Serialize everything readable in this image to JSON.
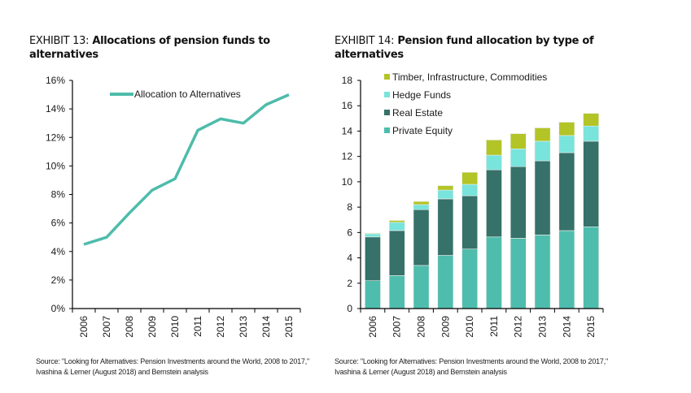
{
  "exhibits": [
    {
      "label": "EXHIBIT 13:",
      "title": "Allocations of pension funds to alternatives",
      "source": "Source: \"Looking for Alternatives: Pension Investments around the World, 2008 to 2017,\" Ivashina & Lerner (August 2018) and Bernstein analysis"
    },
    {
      "label": "EXHIBIT 14:",
      "title": "Pension fund allocation by type of alternatives",
      "source": "Source: \"Looking for Alternatives: Pension Investments around the World, 2008 to 2017,\" Ivashina & Lerner (August 2018) and Bernstein analysis"
    }
  ],
  "chart_data": [
    {
      "type": "line",
      "title": "Allocations of pension funds to alternatives",
      "xlabel": "",
      "ylabel": "",
      "categories": [
        "2006",
        "2007",
        "2008",
        "2009",
        "2010",
        "2011",
        "2012",
        "2013",
        "2014",
        "2015"
      ],
      "series": [
        {
          "name": "Allocation to Alternatives",
          "color": "#4dbcaa",
          "values": [
            4.5,
            5.0,
            6.7,
            8.3,
            9.1,
            12.5,
            13.3,
            13.0,
            14.3,
            15.0
          ]
        }
      ],
      "ylim": [
        0,
        16
      ],
      "yticks": [
        0,
        2,
        4,
        6,
        8,
        10,
        12,
        14,
        16
      ],
      "ytick_labels": [
        "0%",
        "2%",
        "4%",
        "6%",
        "8%",
        "10%",
        "12%",
        "14%",
        "16%"
      ],
      "grid": false,
      "legend": "top"
    },
    {
      "type": "bar",
      "stacked": true,
      "title": "Pension fund allocation by type of alternatives",
      "xlabel": "",
      "ylabel": "",
      "categories": [
        "2006",
        "2007",
        "2008",
        "2009",
        "2010",
        "2011",
        "2012",
        "2013",
        "2014",
        "2015"
      ],
      "series": [
        {
          "name": "Private Equity",
          "color": "#4fbdad",
          "values": [
            2.2,
            2.6,
            3.4,
            4.2,
            4.7,
            5.65,
            5.55,
            5.8,
            6.15,
            6.45
          ]
        },
        {
          "name": "Real Estate",
          "color": "#36716a",
          "values": [
            3.45,
            3.55,
            4.4,
            4.45,
            4.2,
            5.3,
            5.65,
            5.85,
            6.15,
            6.75
          ]
        },
        {
          "name": "Hedge Funds",
          "color": "#78e4dc",
          "values": [
            0.25,
            0.65,
            0.4,
            0.7,
            0.9,
            1.15,
            1.4,
            1.55,
            1.35,
            1.2
          ]
        },
        {
          "name": "Timber, Infrastructure, Commodities",
          "color": "#b3c426",
          "values": [
            0.05,
            0.15,
            0.25,
            0.35,
            0.95,
            1.2,
            1.2,
            1.05,
            1.05,
            1.0
          ]
        }
      ],
      "legend_order": [
        "Timber, Infrastructure, Commodities",
        "Hedge Funds",
        "Real Estate",
        "Private Equity"
      ],
      "ylim": [
        0,
        18
      ],
      "yticks": [
        0,
        2,
        4,
        6,
        8,
        10,
        12,
        14,
        16,
        18
      ],
      "ytick_labels": [
        "0",
        "2",
        "4",
        "6",
        "8",
        "10",
        "12",
        "14",
        "16",
        "18"
      ],
      "grid": false,
      "legend": "top-left"
    }
  ]
}
